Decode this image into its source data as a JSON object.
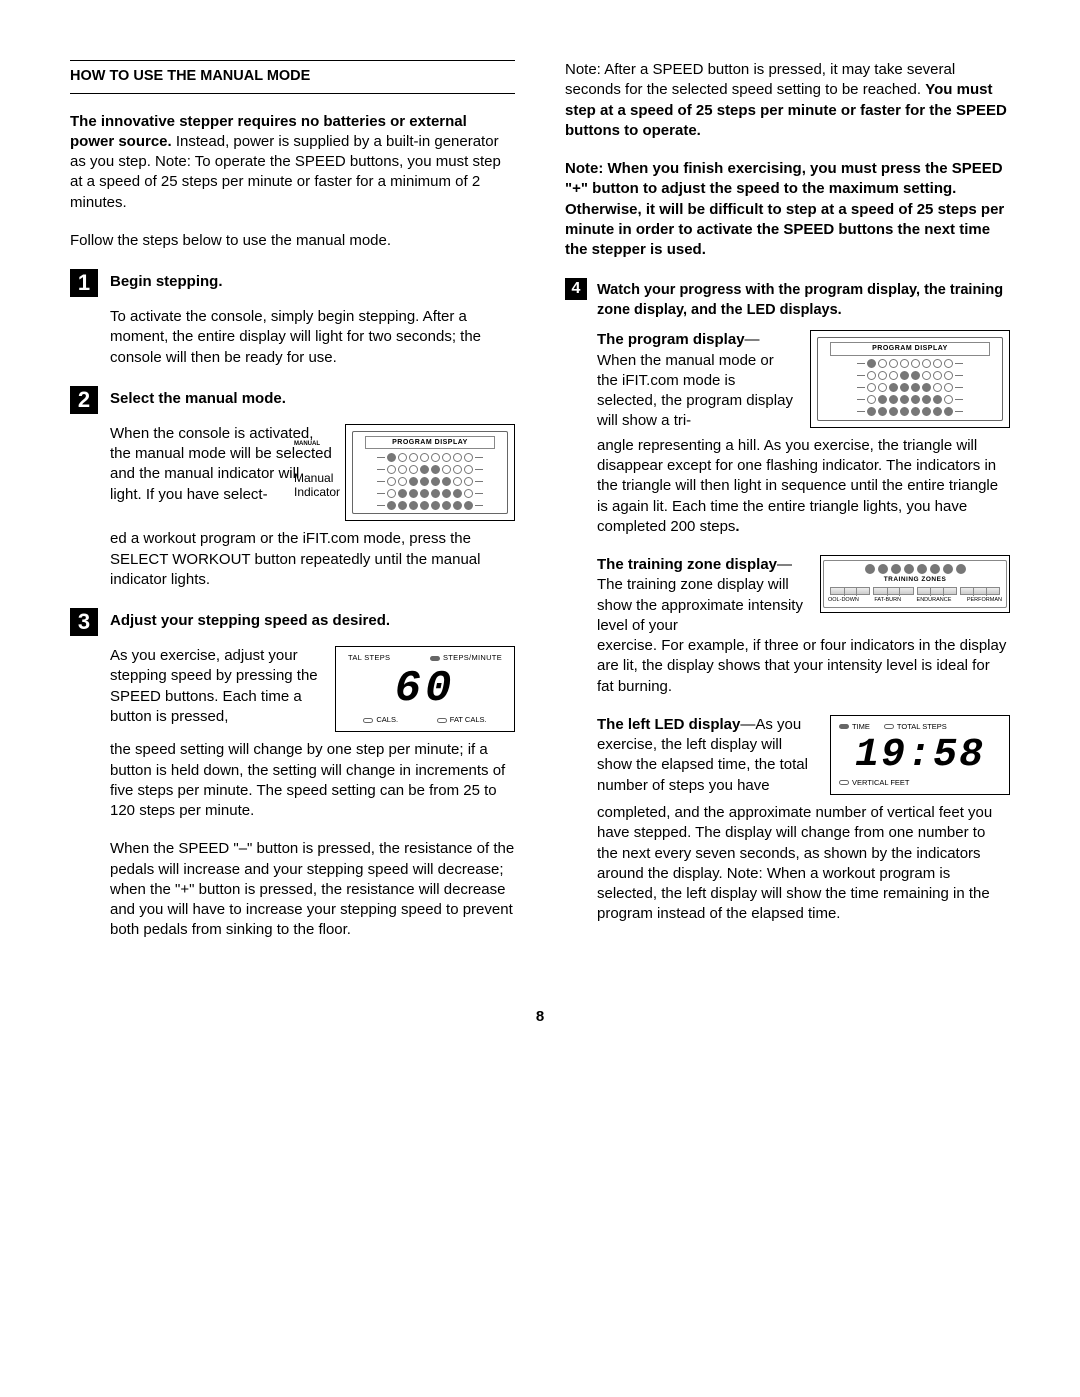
{
  "title": "HOW TO USE THE MANUAL MODE",
  "intro_bold": "The innovative stepper requires no batteries or external power source.",
  "intro_rest": " Instead, power is supplied by a built-in generator as you step. Note: To operate the SPEED buttons, you must step at a speed of 25 steps per minute or faster for a minimum of 2 minutes.",
  "follow": "Follow the steps below to use the manual mode.",
  "s1_head": "Begin stepping.",
  "s1_body": "To activate the console, simply begin stepping. After a moment, the entire display will light for two seconds; the console will then be ready for use.",
  "s2_head": "Select the manual mode.",
  "s2_body1": "When the console is activated, the manual mode will be selected and the manual indicator will light. If you have select-",
  "s2_body2": "ed a workout program or the iFIT.com mode, press the SELECT WORKOUT button repeatedly until the manual indicator lights.",
  "prog_label_title": "PROGRAM DISPLAY",
  "prog_manual": "MANUAL",
  "prog_callout1": "Manual",
  "prog_callout2": "Indicator",
  "s3_head": "Adjust your stepping speed as desired.",
  "s3_body1": "As you exercise, adjust your stepping speed by pressing the SPEED buttons. Each time a button is pressed,",
  "speed_hdr_left": "TAL STEPS",
  "speed_hdr_right": "STEPS/MINUTE",
  "speed_val": "60",
  "speed_ftr_left": "CALS.",
  "speed_ftr_right": "FAT CALS.",
  "s3_body2": "the speed setting will change by one step per minute; if a button is held down, the setting will change in increments of five steps per minute. The speed setting can be from 25 to 120 steps per minute.",
  "s3_body3": "When the SPEED \"–\" button is pressed, the resistance of the pedals will increase and your stepping speed will decrease; when the \"+\" button is pressed, the resistance will decrease and you will have to increase your stepping speed to prevent both pedals from sinking to the floor.",
  "r1a": "Note: After a SPEED button is pressed, it may take several seconds for the selected speed setting to be reached. ",
  "r1b": "You must step at a speed of 25 steps per minute or faster for the SPEED buttons to operate.",
  "r2": "Note: When you finish exercising, you must press the SPEED \"+\" button to adjust the speed to the maximum setting. Otherwise, it will be difficult to step at a speed of 25 steps per minute in order to activate the SPEED buttons the next time the stepper is used.",
  "s4_head": "Watch your progress with the program display, the training zone display, and the LED displays.",
  "pd_head": "The program display",
  "pd_body1": "—When the manual mode or the iFIT.com mode is selected, the program display will show a tri-",
  "pd_body2": "angle representing a hill. As you exercise, the triangle will disappear except for one flashing indicator. The indicators in the triangle will then light in sequence until the entire triangle is again lit. Each time the entire triangle lights, you have completed 200 steps",
  "tz_head": "The training zone display",
  "tz_body1": "—The training zone display will show the approximate intensity level of your",
  "tz_title": "TRAINING ZONES",
  "tz_l1": "OOL-DOWN",
  "tz_l2": "FAT-BURN",
  "tz_l3": "ENDURANCE",
  "tz_l4": "PERFORMAN",
  "tz_body2": "exercise. For example, if three or four indicators in the display are lit, the display shows that your intensity level is ideal for fat burning.",
  "led_head": "The left LED display",
  "led_body1": "—As you exercise, the left display will show the elapsed time, the total number of steps you have",
  "led_hdr1": "TIME",
  "led_hdr2": "TOTAL STEPS",
  "led_val": "19:58",
  "led_ftr": "VERTICAL FEET",
  "led_body2": "completed, and the approximate number of vertical feet you have stepped. The display will change from one number to the next every seven seconds, as shown by the indicators around the display. Note: When a workout program is selected, the left display will show the time remaining in the program instead of the elapsed time.",
  "page": "8",
  "prog_rows": [
    [
      1,
      0,
      0,
      0,
      0,
      0,
      0,
      0
    ],
    [
      0,
      0,
      0,
      1,
      1,
      0,
      0,
      0
    ],
    [
      0,
      0,
      1,
      1,
      1,
      1,
      0,
      0
    ],
    [
      0,
      1,
      1,
      1,
      1,
      1,
      1,
      0
    ],
    [
      1,
      1,
      1,
      1,
      1,
      1,
      1,
      1
    ]
  ],
  "tz_row": [
    1,
    1,
    1,
    1,
    1,
    1,
    1,
    1
  ]
}
